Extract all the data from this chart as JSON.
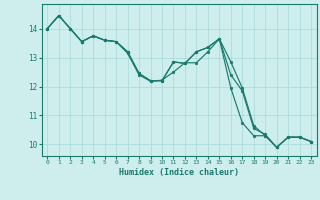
{
  "xlabel": "Humidex (Indice chaleur)",
  "background_color": "#cdeeed",
  "grid_color": "#a8d8d8",
  "line_color": "#1a7a6e",
  "xlim": [
    -0.5,
    23.5
  ],
  "ylim": [
    9.6,
    14.85
  ],
  "yticks": [
    10,
    11,
    12,
    13,
    14
  ],
  "xticks": [
    0,
    1,
    2,
    3,
    4,
    5,
    6,
    7,
    8,
    9,
    10,
    11,
    12,
    13,
    14,
    15,
    16,
    17,
    18,
    19,
    20,
    21,
    22,
    23
  ],
  "series1": [
    14.0,
    14.45,
    14.0,
    13.55,
    13.75,
    13.6,
    13.55,
    13.2,
    12.45,
    12.2,
    12.2,
    12.85,
    12.8,
    13.2,
    13.35,
    13.65,
    12.85,
    11.95,
    10.65,
    10.3,
    9.9,
    10.25,
    10.25,
    10.1
  ],
  "series2": [
    14.0,
    14.45,
    14.0,
    13.55,
    13.75,
    13.6,
    13.55,
    13.15,
    12.4,
    12.18,
    12.22,
    12.5,
    12.82,
    12.82,
    13.2,
    13.65,
    12.4,
    11.85,
    10.55,
    10.35,
    9.9,
    10.25,
    10.25,
    10.1
  ],
  "series3": [
    14.0,
    14.45,
    14.0,
    13.55,
    13.75,
    13.6,
    13.55,
    13.2,
    12.45,
    12.2,
    12.2,
    12.85,
    12.8,
    13.2,
    13.35,
    13.65,
    11.95,
    10.75,
    10.3,
    10.3,
    9.9,
    10.25,
    10.25,
    10.1
  ]
}
